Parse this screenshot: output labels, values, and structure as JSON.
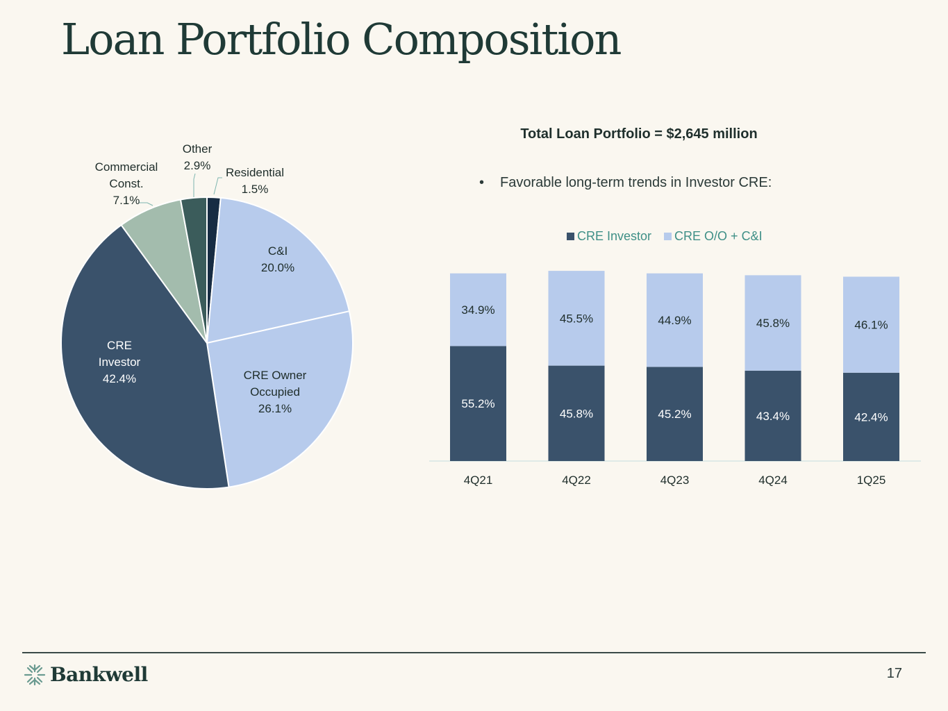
{
  "title": "Loan Portfolio Composition",
  "total_label": "Total Loan Portfolio = $2,645 million",
  "bullet": "Favorable long-term trends in Investor CRE:",
  "page_number": "17",
  "logo_text": "Bankwell",
  "colors": {
    "cre_investor": "#3a526b",
    "cre_oo_ci": "#b7cbec",
    "commercial_const": "#a3bcad",
    "other": "#3b5c5b",
    "residential": "#172c43",
    "legend_text": "#3e8f86"
  },
  "chart_data": [
    {
      "type": "pie",
      "slices": [
        {
          "key": "residential",
          "label_lines": [
            "Residential",
            "1.5%"
          ],
          "value": 1.5
        },
        {
          "key": "ci",
          "label_lines": [
            "C&I",
            "20.0%"
          ],
          "value": 20.0
        },
        {
          "key": "cre_owner",
          "label_lines": [
            "CRE Owner",
            "Occupied",
            "26.1%"
          ],
          "value": 26.1
        },
        {
          "key": "cre_investor",
          "label_lines": [
            "CRE",
            "Investor",
            "42.4%"
          ],
          "value": 42.4
        },
        {
          "key": "commercial_const",
          "label_lines": [
            "Commercial",
            "Const.",
            "7.1%"
          ],
          "value": 7.1
        },
        {
          "key": "other",
          "label_lines": [
            "Other",
            "2.9%"
          ],
          "value": 2.9
        }
      ]
    },
    {
      "type": "bar",
      "stacked": true,
      "categories": [
        "4Q21",
        "4Q22",
        "4Q23",
        "4Q24",
        "1Q25"
      ],
      "series": [
        {
          "name": "CRE Investor",
          "values": [
            55.2,
            45.8,
            45.2,
            43.4,
            42.4
          ],
          "labels": [
            "55.2%",
            "45.8%",
            "45.2%",
            "43.4%",
            "42.4%"
          ]
        },
        {
          "name": "CRE O/O + C&I",
          "values": [
            34.9,
            45.5,
            44.9,
            45.8,
            46.1
          ],
          "labels": [
            "34.9%",
            "45.5%",
            "44.9%",
            "45.8%",
            "46.1%"
          ]
        }
      ],
      "legend": "top"
    }
  ]
}
